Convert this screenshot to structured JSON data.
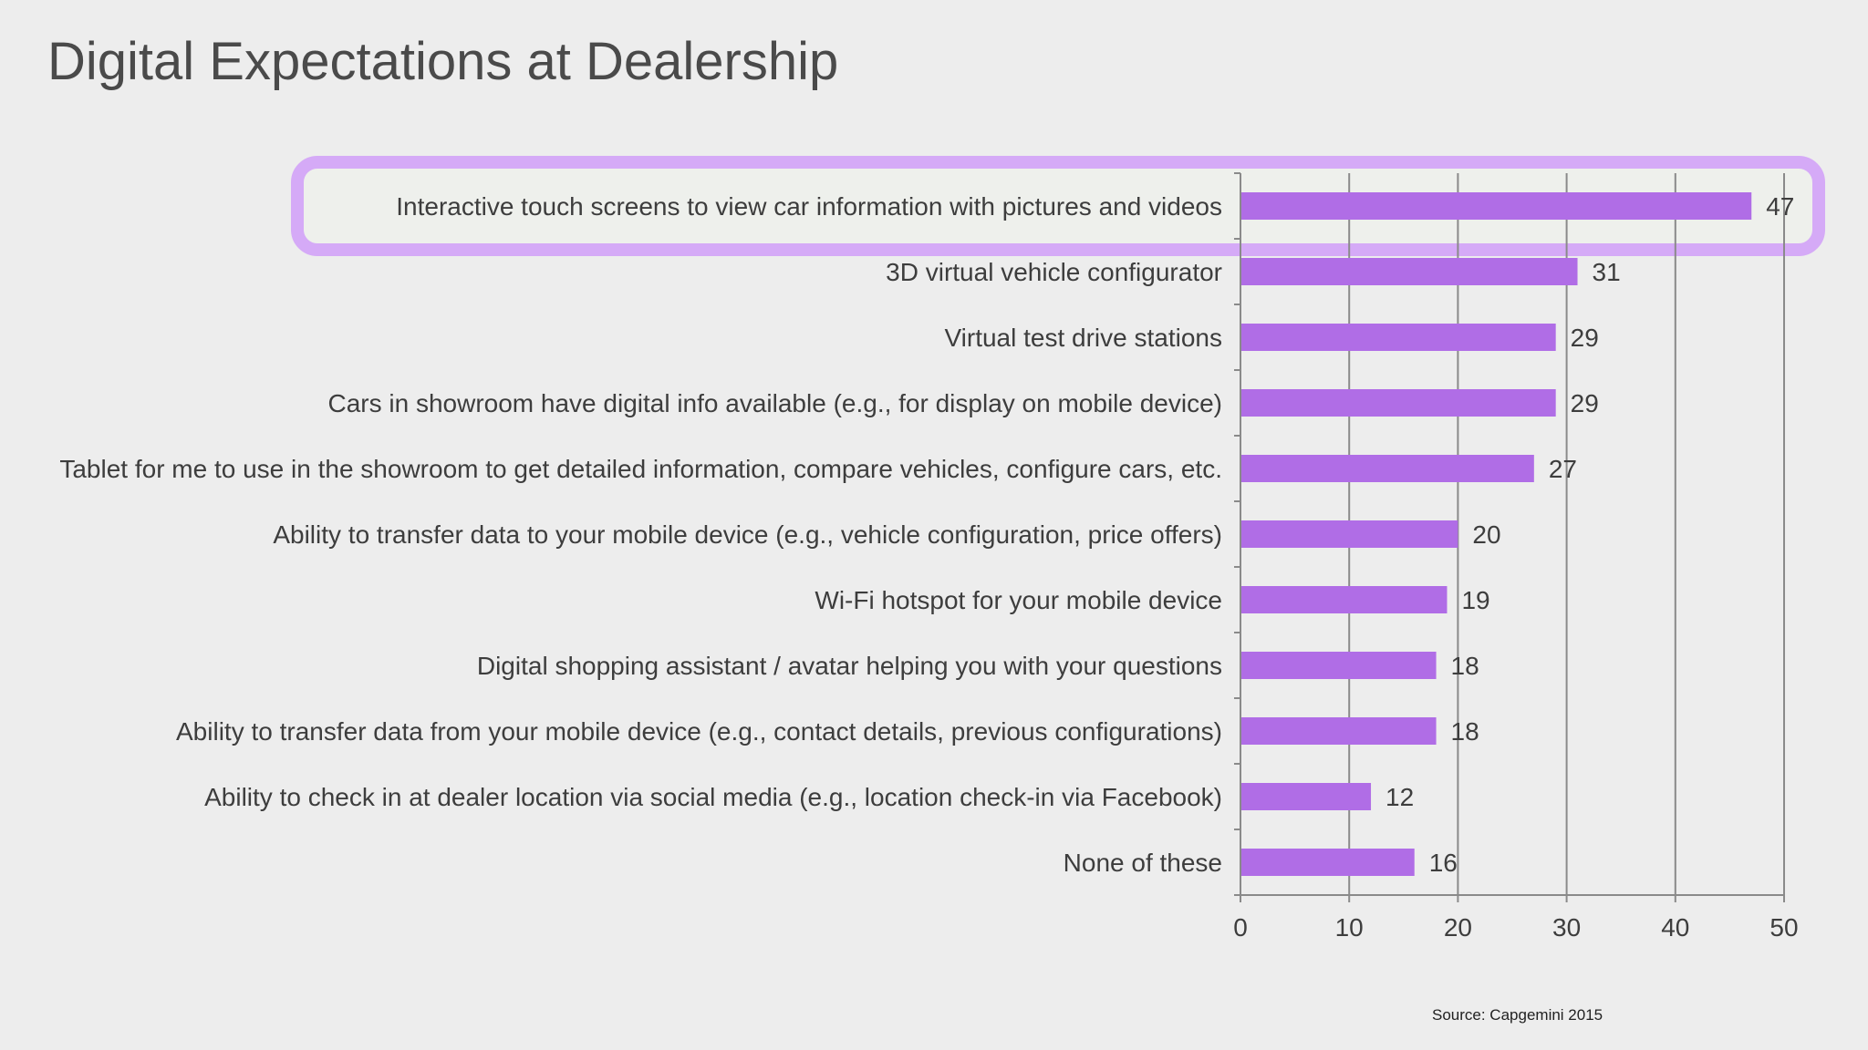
{
  "slide": {
    "title": "Digital Expectations at Dealership",
    "source": "Source:  Capgemini   2015"
  },
  "colors": {
    "background": "#ededed",
    "bar": "#b06de6",
    "highlight_border": "#d5aaf7",
    "highlight_fill": "#eef0ec",
    "gridline": "#8a8a8a",
    "text": "#3d3d3d"
  },
  "chart_data": {
    "type": "bar",
    "orientation": "horizontal",
    "categories": [
      "Interactive touch screens to view car information with pictures and videos",
      "3D virtual vehicle configurator",
      "Virtual test drive stations",
      "Cars in showroom have digital info available (e.g., for display on mobile device)",
      "Tablet for me to use in the showroom to get detailed information, compare vehicles, configure cars, etc.",
      "Ability to transfer data to your mobile device (e.g., vehicle configuration, price offers)",
      "Wi-Fi  hotspot for your mobile device",
      "Digital shopping assistant / avatar helping you with your questions",
      "Ability to transfer data from your mobile device (e.g., contact details, previous configurations)",
      "Ability to check in at dealer location via social media (e.g., location check-in via Facebook)",
      "None of these"
    ],
    "values": [
      47,
      31,
      29,
      29,
      27,
      20,
      19,
      18,
      18,
      12,
      16
    ],
    "xlim": [
      0,
      50
    ],
    "xticks": [
      0,
      10,
      20,
      30,
      40,
      50
    ],
    "grid": true,
    "data_labels": true,
    "highlighted_index": 0,
    "title": "",
    "xlabel": "",
    "ylabel": ""
  }
}
